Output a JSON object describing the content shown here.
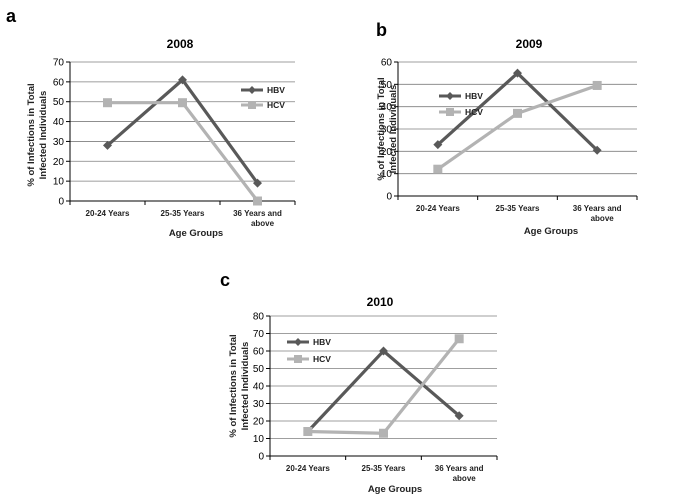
{
  "chart_data": [
    {
      "panel": "a",
      "type": "line",
      "title": "2008",
      "xlabel": "Age Groups",
      "ylabel": "% of Infections in Total Infected Individuals",
      "categories": [
        "20-24 Years",
        "25-35 Years",
        "36 Years and above"
      ],
      "ylim": [
        0,
        70
      ],
      "yticks": [
        0,
        10,
        20,
        30,
        40,
        50,
        60,
        70
      ],
      "grid": true,
      "legend": "top-right",
      "series": [
        {
          "name": "HBV",
          "values": [
            28,
            61,
            9
          ],
          "color": "#595959",
          "marker": "diamond"
        },
        {
          "name": "HCV",
          "values": [
            49.5,
            49.5,
            0
          ],
          "color": "#b3b3b3",
          "marker": "square"
        }
      ]
    },
    {
      "panel": "b",
      "type": "line",
      "title": "2009",
      "xlabel": "Age Groups",
      "ylabel": "% of Infections in Total Infected Individuals",
      "categories": [
        "20-24 Years",
        "25-35 Years",
        "36 Years and above"
      ],
      "ylim": [
        0,
        60
      ],
      "yticks": [
        0,
        10,
        20,
        30,
        40,
        50,
        60
      ],
      "grid": true,
      "legend": "top-left",
      "series": [
        {
          "name": "HBV",
          "values": [
            23,
            55,
            20.5
          ],
          "color": "#595959",
          "marker": "diamond"
        },
        {
          "name": "HCV",
          "values": [
            12,
            37,
            49.5
          ],
          "color": "#b3b3b3",
          "marker": "square"
        }
      ]
    },
    {
      "panel": "c",
      "type": "line",
      "title": "2010",
      "xlabel": "Age Groups",
      "ylabel": "% of Infections in Total Infected Individuals",
      "categories": [
        "20-24 Years",
        "25-35 Years",
        "36 Years and above"
      ],
      "ylim": [
        0,
        80
      ],
      "yticks": [
        0,
        10,
        20,
        30,
        40,
        50,
        60,
        70,
        80
      ],
      "grid": true,
      "legend": "top-left",
      "series": [
        {
          "name": "HBV",
          "values": [
            14,
            60,
            23
          ],
          "color": "#595959",
          "marker": "diamond"
        },
        {
          "name": "HCV",
          "values": [
            14,
            13,
            67
          ],
          "color": "#b3b3b3",
          "marker": "square"
        }
      ]
    }
  ]
}
